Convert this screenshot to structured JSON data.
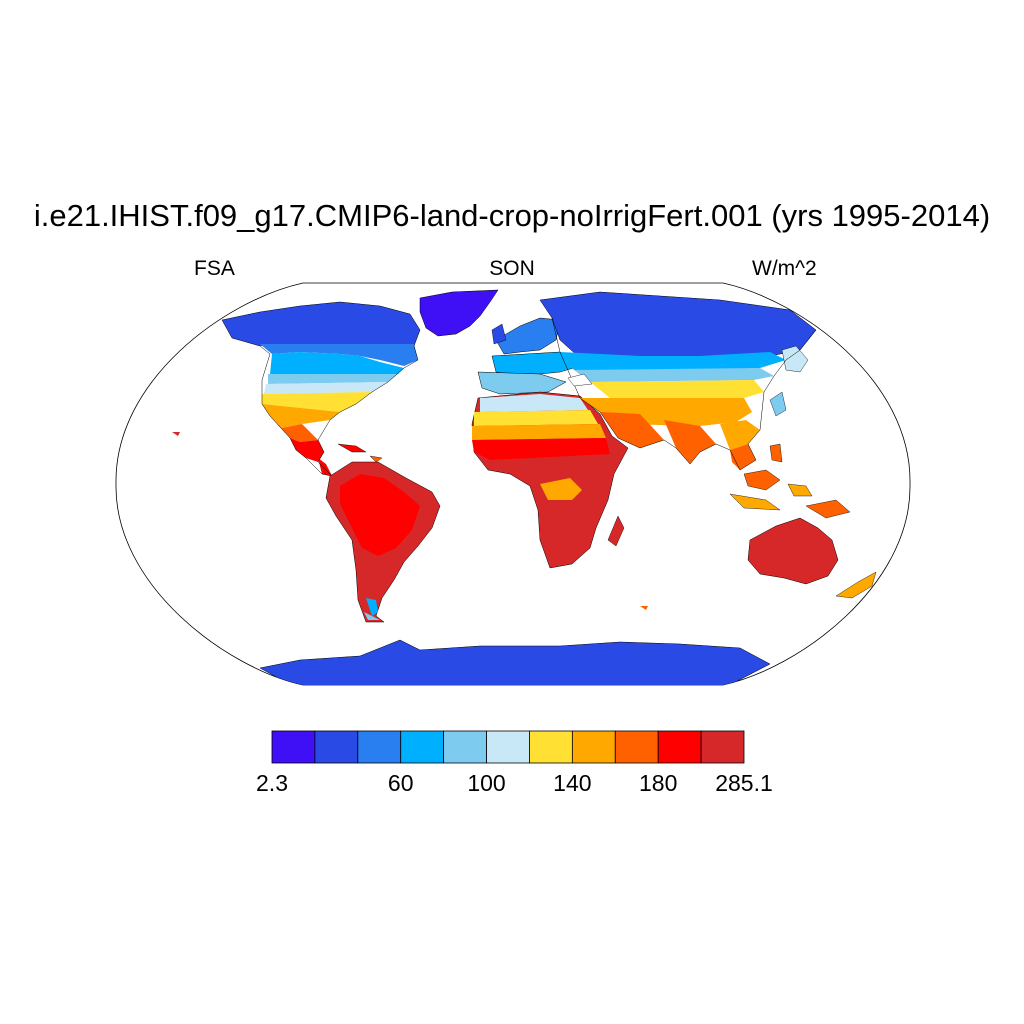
{
  "title": "i.e21.IHIST.f09_g17.CMIP6-land-crop-noIrrigFert.001 (yrs 1995-2014)",
  "variable_label": "FSA",
  "season_label": "SON",
  "units_label": "W/m^2",
  "projection": "Robinson",
  "colorbar": {
    "colors": [
      "#3f10f5",
      "#2a4ae6",
      "#2a7ff0",
      "#00b0ff",
      "#7ecbf0",
      "#c8e8f8",
      "#ffe033",
      "#ffa800",
      "#ff6000",
      "#ff0000",
      "#d62828"
    ],
    "tick_labels": [
      {
        "label": "2.3",
        "boundary": 0
      },
      {
        "label": "60",
        "boundary": 3
      },
      {
        "label": "100",
        "boundary": 5
      },
      {
        "label": "140",
        "boundary": 7
      },
      {
        "label": "180",
        "boundary": 9
      },
      {
        "label": "285.1",
        "boundary": 11
      }
    ]
  }
}
